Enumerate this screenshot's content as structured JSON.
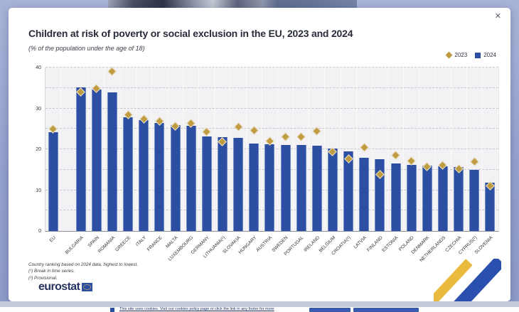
{
  "window": {
    "close_label": "✕"
  },
  "header": {
    "title": "Children at risk of poverty or social exclusion in the EU, 2023 and 2024",
    "subtitle": "(% of the population under the age of 18)"
  },
  "legend": {
    "items": [
      {
        "label": "2023",
        "marker": "diamond",
        "color": "#bf9c41"
      },
      {
        "label": "2024",
        "marker": "square",
        "color": "#2c4fa3"
      }
    ]
  },
  "chart_data": {
    "type": "bar",
    "title": "Children at risk of poverty or social exclusion in the EU, 2023 and 2024",
    "subtitle": "(% of the population under the age of 18)",
    "ylabel": "% of the population under the age of 18",
    "xlabel": "",
    "ylim": [
      0,
      40
    ],
    "yticks": [
      0,
      10,
      20,
      30,
      40
    ],
    "grid": "horizontal dashed every 5 units",
    "legend_position": "top-right",
    "categories": [
      "EU",
      "BULGARIA",
      "SPAIN",
      "ROMANIA",
      "GREECE",
      "ITALY",
      "FRANCE",
      "MALTA",
      "LUXEMBOURG",
      "GERMANY",
      "LITHUANIA(¹)",
      "SLOVAKIA",
      "HUNGARY",
      "AUSTRIA",
      "SWEDEN",
      "PORTUGAL",
      "IRELAND",
      "BELGIUM",
      "CROATIA(¹)",
      "LATVIA",
      "FINLAND",
      "ESTONIA",
      "POLAND",
      "DENMARK",
      "NETHERLANDS",
      "CZECHIA",
      "CYPRUS(²)",
      "SLOVENIA"
    ],
    "series": [
      {
        "name": "2023",
        "marker": "diamond",
        "color": "#bf9c41",
        "values": [
          24.8,
          34.0,
          34.8,
          39.0,
          28.3,
          27.3,
          26.8,
          25.5,
          26.3,
          24.1,
          21.8,
          25.4,
          24.6,
          22.0,
          23.0,
          23.0,
          24.4,
          19.3,
          17.6,
          20.4,
          13.8,
          18.5,
          17.0,
          15.6,
          16.0,
          15.1,
          16.9,
          10.9
        ]
      },
      {
        "name": "2024",
        "marker": "bar",
        "color": "#2c4fa3",
        "values": [
          24.2,
          35.2,
          34.6,
          33.9,
          27.9,
          27.2,
          26.4,
          26.0,
          25.8,
          23.1,
          23.0,
          22.8,
          21.4,
          21.2,
          21.1,
          21.0,
          20.8,
          20.2,
          19.4,
          18.0,
          17.5,
          16.6,
          16.1,
          16.0,
          15.9,
          15.7,
          15.0,
          11.9
        ]
      }
    ]
  },
  "footnotes": {
    "lines": [
      "Country ranking based on 2024 data, highest to lowest.",
      "(¹) Break in time series.",
      "(²) Provisional."
    ]
  },
  "branding": {
    "logo_text": "eurostat"
  },
  "cookie_banner": {
    "text": "This site uses cookies. Visit our cookies policy page or click the link in any footer for more"
  },
  "colors": {
    "bar_2024": "#2c4fa3",
    "diamond_2023": "#bf9c41",
    "backdrop": "#93a0cc",
    "ribbon_yellow": "#eaba3e",
    "ribbon_blue": "#2a4fae"
  }
}
